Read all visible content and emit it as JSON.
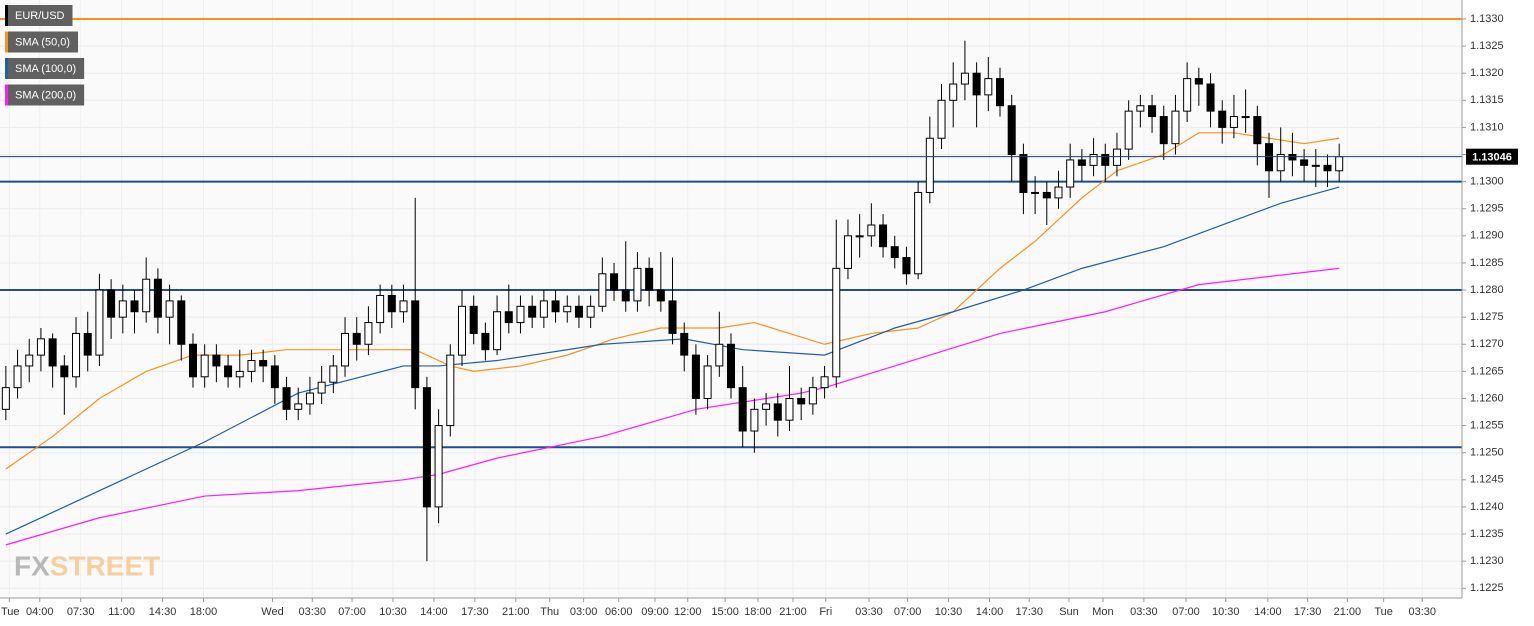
{
  "chart_data": {
    "type": "candlestick",
    "ylim": [
      1.12232,
      1.13335
    ],
    "xlim": [
      -0.5,
      124.5
    ],
    "yticks": [
      1.1225,
      {
        "value": 1.123,
        "label": "1.1230"
      },
      1.1235,
      {
        "value": 1.124,
        "label": "1.1240"
      },
      1.1245,
      {
        "value": 1.125,
        "label": "1.1250"
      },
      1.1255,
      {
        "value": 1.126,
        "label": "1.1260"
      },
      1.1265,
      {
        "value": 1.127,
        "label": "1.1270"
      },
      1.1275,
      {
        "value": 1.128,
        "label": "1.1280"
      },
      1.1285,
      {
        "value": 1.129,
        "label": "1.1290"
      },
      1.1295,
      {
        "value": 1.13,
        "label": "1.1300"
      },
      1.1305,
      {
        "value": 1.131,
        "label": "1.1310"
      },
      1.1315,
      {
        "value": 1.132,
        "label": "1.1320"
      },
      1.1325,
      {
        "value": 1.133,
        "label": "1.1330"
      }
    ],
    "xticks": [
      {
        "value": 0.3,
        "label": "Tue"
      },
      {
        "value": 2.9,
        "label": "04:00"
      },
      {
        "value": 6.4,
        "label": "07:30"
      },
      {
        "value": 9.9,
        "label": "11:00"
      },
      {
        "value": 13.4,
        "label": "14:30"
      },
      {
        "value": 16.9,
        "label": "18:00"
      },
      {
        "value": 22.8,
        "label": "Wed"
      },
      {
        "value": 26.2,
        "label": "03:30"
      },
      {
        "value": 29.6,
        "label": "07:00"
      },
      {
        "value": 33.1,
        "label": "10:30"
      },
      {
        "value": 36.6,
        "label": "14:00"
      },
      {
        "value": 40.1,
        "label": "17:30"
      },
      {
        "value": 43.6,
        "label": "21:00"
      },
      {
        "value": 46.5,
        "label": "Thu"
      },
      {
        "value": 49.4,
        "label": "03:00"
      },
      {
        "value": 52.4,
        "label": "06:00"
      },
      {
        "value": 55.5,
        "label": "09:00"
      },
      {
        "value": 58.3,
        "label": "12:00"
      },
      {
        "value": 61.5,
        "label": "15:00"
      },
      {
        "value": 64.3,
        "label": "18:00"
      },
      {
        "value": 67.3,
        "label": "21:00"
      },
      {
        "value": 70.1,
        "label": "Fri"
      },
      {
        "value": 73.8,
        "label": "03:30"
      },
      {
        "value": 77.1,
        "label": "07:00"
      },
      {
        "value": 80.6,
        "label": "10:30"
      },
      {
        "value": 84.1,
        "label": "14:00"
      },
      {
        "value": 87.5,
        "label": "17:30"
      },
      {
        "value": 90.9,
        "label": "Sun"
      },
      {
        "value": 93.8,
        "label": "Mon"
      },
      {
        "value": 97.3,
        "label": "03:30"
      },
      {
        "value": 100.9,
        "label": "07:00"
      },
      {
        "value": 104.3,
        "label": "10:30"
      },
      {
        "value": 107.9,
        "label": "14:00"
      },
      {
        "value": 111.3,
        "label": "17:30"
      },
      {
        "value": 114.7,
        "label": "21:00"
      },
      {
        "value": 117.8,
        "label": "Tue"
      },
      {
        "value": 121.1,
        "label": "03:30"
      }
    ],
    "grid": true,
    "up_color": "#ffffff",
    "down_color": "#000000",
    "candles": {
      "name": "EUR/USD",
      "color": "#000000",
      "x": [
        0,
        1,
        2,
        3,
        4,
        5,
        6,
        7,
        8,
        9,
        10,
        11,
        12,
        13,
        14,
        15,
        16,
        17,
        18,
        19,
        20,
        21,
        22,
        23,
        24,
        25,
        26,
        27,
        28,
        29,
        30,
        31,
        32,
        33,
        34,
        35,
        36,
        37,
        38,
        39,
        40,
        41,
        42,
        43,
        44,
        45,
        46,
        47,
        48,
        49,
        50,
        51,
        52,
        53,
        54,
        55,
        56,
        57,
        58,
        59,
        60,
        61,
        62,
        63,
        64,
        65,
        66,
        67,
        68,
        69,
        70,
        71,
        72,
        73,
        74,
        75,
        76,
        77,
        78,
        79,
        80,
        81,
        82,
        83,
        84,
        85,
        86,
        87,
        88,
        89,
        90,
        91,
        92,
        93,
        94,
        95,
        96,
        97,
        98,
        99,
        100,
        101,
        102,
        103,
        104,
        105,
        106,
        107,
        108,
        109,
        110,
        111,
        112,
        113,
        114
      ],
      "ohlc": [
        [
          1.1258,
          1.1266,
          1.1256,
          1.1262
        ],
        [
          1.1262,
          1.1269,
          1.126,
          1.1266
        ],
        [
          1.1266,
          1.1271,
          1.1263,
          1.1268
        ],
        [
          1.1268,
          1.1273,
          1.1265,
          1.1271
        ],
        [
          1.1271,
          1.1272,
          1.1262,
          1.1266
        ],
        [
          1.1266,
          1.1268,
          1.1257,
          1.1264
        ],
        [
          1.1264,
          1.1275,
          1.1262,
          1.1272
        ],
        [
          1.1272,
          1.1276,
          1.1265,
          1.1268
        ],
        [
          1.1268,
          1.1283,
          1.1266,
          1.128
        ],
        [
          1.128,
          1.1282,
          1.1271,
          1.1275
        ],
        [
          1.1275,
          1.1281,
          1.1272,
          1.1278
        ],
        [
          1.1278,
          1.128,
          1.1272,
          1.1276
        ],
        [
          1.1276,
          1.1286,
          1.1274,
          1.1282
        ],
        [
          1.1282,
          1.1284,
          1.1272,
          1.1275
        ],
        [
          1.1275,
          1.1281,
          1.127,
          1.1278
        ],
        [
          1.1278,
          1.1279,
          1.1267,
          1.127
        ],
        [
          1.127,
          1.1272,
          1.1262,
          1.1264
        ],
        [
          1.1264,
          1.127,
          1.1262,
          1.1268
        ],
        [
          1.1268,
          1.127,
          1.1263,
          1.1266
        ],
        [
          1.1266,
          1.1268,
          1.1262,
          1.1264
        ],
        [
          1.1264,
          1.1269,
          1.1262,
          1.1265
        ],
        [
          1.1265,
          1.1269,
          1.1263,
          1.1267
        ],
        [
          1.1267,
          1.1269,
          1.1263,
          1.1266
        ],
        [
          1.1266,
          1.1268,
          1.1259,
          1.1262
        ],
        [
          1.1262,
          1.1264,
          1.1256,
          1.1258
        ],
        [
          1.1258,
          1.1262,
          1.1256,
          1.1259
        ],
        [
          1.1259,
          1.1264,
          1.1257,
          1.1261
        ],
        [
          1.1261,
          1.1266,
          1.1259,
          1.1263
        ],
        [
          1.1263,
          1.1268,
          1.1261,
          1.1266
        ],
        [
          1.1266,
          1.1275,
          1.1264,
          1.1272
        ],
        [
          1.1272,
          1.1275,
          1.1267,
          1.127
        ],
        [
          1.127,
          1.1277,
          1.1268,
          1.1274
        ],
        [
          1.1274,
          1.1281,
          1.1272,
          1.1279
        ],
        [
          1.1279,
          1.1281,
          1.1273,
          1.1276
        ],
        [
          1.1276,
          1.1281,
          1.1274,
          1.1278
        ],
        [
          1.1278,
          1.1297,
          1.1258,
          1.1262
        ],
        [
          1.1262,
          1.1264,
          1.123,
          1.124
        ],
        [
          1.124,
          1.1258,
          1.1237,
          1.1255
        ],
        [
          1.1255,
          1.127,
          1.1253,
          1.1268
        ],
        [
          1.1268,
          1.128,
          1.1266,
          1.1277
        ],
        [
          1.1277,
          1.1279,
          1.127,
          1.1272
        ],
        [
          1.1272,
          1.1274,
          1.1267,
          1.1269
        ],
        [
          1.1269,
          1.1279,
          1.1268,
          1.1276
        ],
        [
          1.1276,
          1.1281,
          1.1272,
          1.1274
        ],
        [
          1.1274,
          1.1279,
          1.1272,
          1.1277
        ],
        [
          1.1277,
          1.1279,
          1.1273,
          1.1275
        ],
        [
          1.1275,
          1.128,
          1.1273,
          1.1278
        ],
        [
          1.1278,
          1.128,
          1.1274,
          1.1276
        ],
        [
          1.1276,
          1.1279,
          1.1274,
          1.1277
        ],
        [
          1.1277,
          1.1279,
          1.1273,
          1.1275
        ],
        [
          1.1275,
          1.1279,
          1.1273,
          1.1277
        ],
        [
          1.1277,
          1.1286,
          1.1276,
          1.1283
        ],
        [
          1.1283,
          1.1285,
          1.1278,
          1.128
        ],
        [
          1.128,
          1.1289,
          1.1276,
          1.1278
        ],
        [
          1.1278,
          1.1287,
          1.1276,
          1.1284
        ],
        [
          1.1284,
          1.1286,
          1.1277,
          1.128
        ],
        [
          1.128,
          1.1287,
          1.1276,
          1.1278
        ],
        [
          1.1278,
          1.1286,
          1.127,
          1.1272
        ],
        [
          1.1272,
          1.1274,
          1.1265,
          1.1268
        ],
        [
          1.1268,
          1.127,
          1.1257,
          1.126
        ],
        [
          1.126,
          1.1268,
          1.1258,
          1.1266
        ],
        [
          1.1266,
          1.1276,
          1.1264,
          1.127
        ],
        [
          1.127,
          1.1272,
          1.126,
          1.1262
        ],
        [
          1.1262,
          1.1266,
          1.1251,
          1.1254
        ],
        [
          1.1254,
          1.126,
          1.125,
          1.1258
        ],
        [
          1.1258,
          1.1261,
          1.1255,
          1.1259
        ],
        [
          1.1259,
          1.1261,
          1.1253,
          1.1256
        ],
        [
          1.1256,
          1.1266,
          1.1254,
          1.126
        ],
        [
          1.126,
          1.1262,
          1.1256,
          1.1259
        ],
        [
          1.1259,
          1.1264,
          1.1257,
          1.1262
        ],
        [
          1.1262,
          1.1266,
          1.126,
          1.1264
        ],
        [
          1.1264,
          1.1293,
          1.1262,
          1.1284
        ],
        [
          1.1284,
          1.1293,
          1.1282,
          1.129
        ],
        [
          1.129,
          1.1294,
          1.1286,
          1.129
        ],
        [
          1.129,
          1.1296,
          1.1288,
          1.1292
        ],
        [
          1.1292,
          1.1294,
          1.1286,
          1.1288
        ],
        [
          1.1288,
          1.129,
          1.1284,
          1.1286
        ],
        [
          1.1286,
          1.1288,
          1.1281,
          1.1283
        ],
        [
          1.1283,
          1.13,
          1.1282,
          1.1298
        ],
        [
          1.1298,
          1.1312,
          1.1296,
          1.1308
        ],
        [
          1.1308,
          1.1318,
          1.1306,
          1.1315
        ],
        [
          1.1315,
          1.1322,
          1.131,
          1.1318
        ],
        [
          1.1318,
          1.1326,
          1.1315,
          1.132
        ],
        [
          1.132,
          1.1322,
          1.131,
          1.1316
        ],
        [
          1.1316,
          1.1323,
          1.1313,
          1.1319
        ],
        [
          1.1319,
          1.1321,
          1.1312,
          1.1314
        ],
        [
          1.1314,
          1.1316,
          1.13,
          1.1305
        ],
        [
          1.1305,
          1.1307,
          1.1294,
          1.1298
        ],
        [
          1.1298,
          1.1301,
          1.1294,
          1.1298
        ],
        [
          1.1298,
          1.13,
          1.1292,
          1.1297
        ],
        [
          1.1297,
          1.1302,
          1.1295,
          1.1299
        ],
        [
          1.1299,
          1.1307,
          1.1297,
          1.1304
        ],
        [
          1.1304,
          1.1306,
          1.13,
          1.1303
        ],
        [
          1.1303,
          1.1308,
          1.1301,
          1.1305
        ],
        [
          1.1305,
          1.1307,
          1.13,
          1.1303
        ],
        [
          1.1303,
          1.1309,
          1.1301,
          1.1306
        ],
        [
          1.1306,
          1.1315,
          1.1304,
          1.1313
        ],
        [
          1.1313,
          1.1316,
          1.131,
          1.1314
        ],
        [
          1.1314,
          1.1316,
          1.1309,
          1.1312
        ],
        [
          1.1312,
          1.1314,
          1.1304,
          1.1307
        ],
        [
          1.1307,
          1.1316,
          1.1305,
          1.1313
        ],
        [
          1.1313,
          1.1322,
          1.1311,
          1.1319
        ],
        [
          1.1319,
          1.1321,
          1.1314,
          1.1318
        ],
        [
          1.1318,
          1.132,
          1.131,
          1.1313
        ],
        [
          1.1313,
          1.1315,
          1.1307,
          1.131
        ],
        [
          1.131,
          1.1316,
          1.1308,
          1.1312
        ],
        [
          1.1312,
          1.1317,
          1.1309,
          1.1312
        ],
        [
          1.1312,
          1.1314,
          1.1303,
          1.1307
        ],
        [
          1.1307,
          1.1309,
          1.1297,
          1.1302
        ],
        [
          1.1302,
          1.131,
          1.13,
          1.1305
        ],
        [
          1.1305,
          1.1309,
          1.1301,
          1.1304
        ],
        [
          1.1304,
          1.1306,
          1.13,
          1.1303
        ],
        [
          1.1303,
          1.1306,
          1.1299,
          1.1303
        ],
        [
          1.1303,
          1.1305,
          1.1299,
          1.1302
        ],
        [
          1.1302,
          1.1307,
          1.13,
          1.13046
        ]
      ]
    },
    "series": [
      {
        "name": "SMA (50,0)",
        "color": "#f7931a",
        "x": [
          0,
          4,
          8,
          12,
          16,
          20,
          24,
          28,
          32,
          35,
          38,
          40,
          44,
          48,
          52,
          56,
          58,
          61,
          64,
          67,
          70,
          74,
          78,
          81,
          85,
          88,
          92,
          95,
          99,
          102,
          105,
          108,
          111,
          114
        ],
        "values": [
          1.1247,
          1.1253,
          1.126,
          1.1265,
          1.1268,
          1.1268,
          1.1269,
          1.1269,
          1.1269,
          1.1269,
          1.1266,
          1.1265,
          1.1266,
          1.1268,
          1.1271,
          1.1273,
          1.1273,
          1.1273,
          1.1274,
          1.1272,
          1.127,
          1.1272,
          1.1273,
          1.1276,
          1.1284,
          1.1289,
          1.1297,
          1.1302,
          1.1305,
          1.1309,
          1.1309,
          1.1308,
          1.1307,
          1.1308
        ]
      },
      {
        "name": "SMA (100,0)",
        "color": "#1f5fa8",
        "x": [
          0,
          8,
          17,
          25,
          34,
          37,
          42,
          51,
          58,
          63,
          70,
          76,
          81,
          87,
          92,
          99,
          104,
          109,
          114
        ],
        "values": [
          1.1235,
          1.1243,
          1.1252,
          1.1261,
          1.1266,
          1.1266,
          1.1267,
          1.127,
          1.1271,
          1.1269,
          1.1268,
          1.1273,
          1.1276,
          1.128,
          1.1284,
          1.1288,
          1.1292,
          1.1296,
          1.1299
        ]
      },
      {
        "name": "SMA (200,0)",
        "color": "#ff1aff",
        "x": [
          0,
          8,
          17,
          25,
          34,
          37,
          42,
          51,
          59,
          68,
          70,
          76,
          85,
          94,
          102,
          114
        ],
        "values": [
          1.1233,
          1.1238,
          1.1242,
          1.1243,
          1.1245,
          1.1246,
          1.1249,
          1.1253,
          1.1258,
          1.1261,
          1.1262,
          1.1266,
          1.1272,
          1.1276,
          1.1281,
          1.1284
        ]
      }
    ],
    "levels": [
      {
        "value": 1.133,
        "color": "#f7931a"
      },
      {
        "value": 1.13,
        "color": "#1e4e8c"
      },
      {
        "value": 1.128,
        "color": "#1e4e8c"
      },
      {
        "value": 1.1251,
        "color": "#1e4e8c"
      }
    ],
    "last_price": 1.13046,
    "logo": {
      "left": "FX",
      "right": "STREET"
    }
  }
}
